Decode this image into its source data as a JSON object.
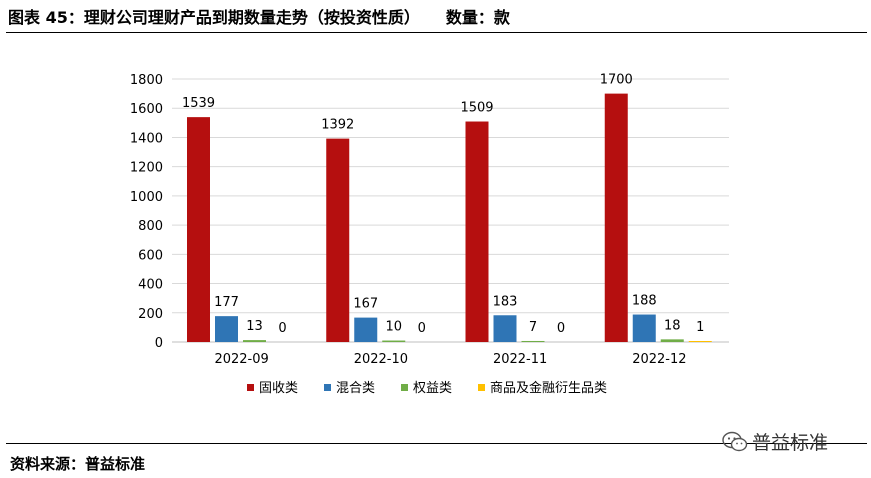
{
  "figure": {
    "title": "图表 45：理财公司理财产品到期数量走势（按投资性质）",
    "unit": "数量：款"
  },
  "source": "资料来源：普益标准",
  "watermark": {
    "text": "普益标准",
    "icon": "wechat-icon"
  },
  "chart_data": {
    "type": "bar",
    "categories": [
      "2022-09",
      "2022-10",
      "2022-11",
      "2022-12"
    ],
    "series": [
      {
        "name": "固收类",
        "values": [
          1539,
          1392,
          1509,
          1700
        ],
        "color": "#b50f0f"
      },
      {
        "name": "混合类",
        "values": [
          177,
          167,
          183,
          188
        ],
        "color": "#2f75b5"
      },
      {
        "name": "权益类",
        "values": [
          13,
          10,
          7,
          18
        ],
        "color": "#70ad47"
      },
      {
        "name": "商品及金融衍生品类",
        "values": [
          0,
          0,
          0,
          1
        ],
        "color": "#ffc000"
      }
    ],
    "ylim": [
      0,
      1800
    ],
    "yticks": [
      0,
      200,
      400,
      600,
      800,
      1000,
      1200,
      1400,
      1600,
      1800
    ],
    "grid": true,
    "legend": "bottom",
    "data_labels": true
  }
}
